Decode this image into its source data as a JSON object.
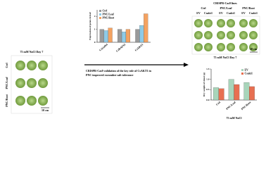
{
  "left_panel": {
    "condition": "75 mM NaCl Day 7",
    "rows": [
      "Ctrl",
      "PNC/Leaf",
      "PNC/Root"
    ],
    "scale": "10 cm"
  },
  "caption_lines": [
    "CRISPR-Cas9 validation of the key role of CsAKT1 in",
    "PNC improved cucumber salt tolerance"
  ],
  "right_panel": {
    "title": "CRISPR-Cas9 lines",
    "groups": [
      "Ctrl",
      "PNC/Leaf",
      "PNC/Root"
    ],
    "lines": [
      "EV",
      "Csakt1"
    ],
    "condition": "75 mM NaCl Day 7",
    "scale": "10 cm"
  },
  "chart_data": [
    {
      "type": "bar",
      "ylabel": "Expression of genes in leaf",
      "categories": [
        "CsGolS4",
        "CsRAFS3",
        "CsAKT1"
      ],
      "series": [
        {
          "name": "Ctrl",
          "color": "#9a9a9a",
          "values": [
            1,
            1,
            1
          ]
        },
        {
          "name": "PNC/Leaf",
          "color": "#8ecae6",
          "values": [
            0.9,
            0.8,
            1.3
          ]
        },
        {
          "name": "PNC/Root",
          "color": "#f4a261",
          "values": [
            1.1,
            1.0,
            2.2
          ]
        }
      ],
      "ylim": [
        0,
        2.5
      ],
      "yticks": [
        0,
        1,
        2
      ],
      "legend": "upper left"
    },
    {
      "type": "bar",
      "ylabel": "Dry weight of shoot (g)",
      "xlabel": "75 mM NaCl",
      "categories": [
        "Ctrl",
        "PNC/Leaf",
        "PNC/Root"
      ],
      "series": [
        {
          "name": "EV",
          "color": "#a8d5ba",
          "values": [
            0.6,
            1.0,
            0.85
          ]
        },
        {
          "name": "Csakt1",
          "color": "#e76f51",
          "values": [
            0.55,
            0.75,
            0.65
          ]
        }
      ],
      "ylim": [
        0,
        1.5
      ],
      "yticks": [
        {
          "value": 0,
          "label": "0.0"
        },
        {
          "value": 0.5,
          "label": "0.5"
        },
        {
          "value": 1,
          "label": "1.0"
        },
        {
          "value": 1.5,
          "label": "1.5"
        }
      ],
      "legend": "upper right"
    }
  ]
}
